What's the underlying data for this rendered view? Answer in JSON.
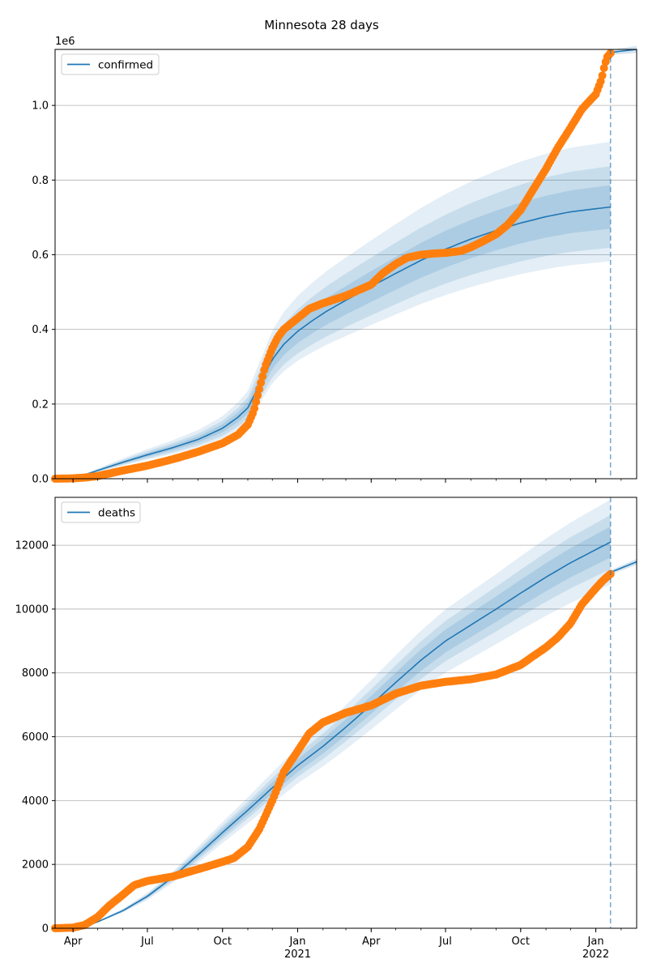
{
  "title": "Minnesota 28 days",
  "colors": {
    "model": "#1f77b4",
    "observed": "#ff7f0e",
    "grid": "#b0b0b0"
  },
  "x_ticks": [
    {
      "date": "2020-04-01",
      "label": "Apr",
      "year": ""
    },
    {
      "date": "2020-07-01",
      "label": "Jul",
      "year": ""
    },
    {
      "date": "2020-10-01",
      "label": "Oct",
      "year": ""
    },
    {
      "date": "2021-01-01",
      "label": "Jan",
      "year": "2021"
    },
    {
      "date": "2021-04-01",
      "label": "Apr",
      "year": ""
    },
    {
      "date": "2021-07-01",
      "label": "Jul",
      "year": ""
    },
    {
      "date": "2021-10-01",
      "label": "Oct",
      "year": ""
    },
    {
      "date": "2022-01-01",
      "label": "Jan",
      "year": "2022"
    }
  ],
  "chart_data": [
    {
      "type": "line",
      "legend": "confirmed",
      "legend_position": "upper-left",
      "offset_label": "1e6",
      "xlim": [
        "2020-03-10",
        "2022-02-20"
      ],
      "ylim": [
        0,
        1150000
      ],
      "y_ticks": [
        0,
        200000,
        400000,
        600000,
        800000,
        1000000
      ],
      "y_tick_labels": [
        "0.0",
        "0.2",
        "0.4",
        "0.6",
        "0.8",
        "1.0"
      ],
      "grid": "horizontal",
      "forecast_start": "2022-01-19",
      "model": {
        "x": [
          "2020-03-10",
          "2020-04-01",
          "2020-05-01",
          "2020-06-01",
          "2020-07-01",
          "2020-08-01",
          "2020-09-01",
          "2020-10-01",
          "2020-10-20",
          "2020-11-01",
          "2020-11-15",
          "2020-12-01",
          "2020-12-15",
          "2021-01-01",
          "2021-01-20",
          "2021-02-05",
          "2021-03-01",
          "2021-04-01",
          "2021-05-01",
          "2021-06-01",
          "2021-07-01",
          "2021-08-01",
          "2021-09-01",
          "2021-10-01",
          "2021-11-01",
          "2021-12-01",
          "2022-01-19"
        ],
        "y": [
          0,
          0,
          22000,
          44000,
          64000,
          83000,
          105000,
          135000,
          165000,
          190000,
          250000,
          320000,
          360000,
          395000,
          425000,
          448000,
          478000,
          515000,
          550000,
          585000,
          615000,
          642000,
          665000,
          685000,
          702000,
          715000,
          728000
        ],
        "band_inner": [
          0.92,
          1.08
        ],
        "band_mid": [
          0.85,
          1.15
        ],
        "band_outer": [
          0.8,
          1.24
        ]
      },
      "projection": {
        "x": [
          "2022-01-19",
          "2022-02-20"
        ],
        "y": [
          1142000,
          1150000
        ]
      },
      "observed": {
        "x": [
          "2020-03-10",
          "2020-04-01",
          "2020-04-15",
          "2020-05-01",
          "2020-06-01",
          "2020-07-01",
          "2020-08-01",
          "2020-09-01",
          "2020-10-01",
          "2020-10-20",
          "2020-11-01",
          "2020-11-08",
          "2020-11-15",
          "2020-11-22",
          "2020-12-01",
          "2020-12-08",
          "2020-12-15",
          "2021-01-01",
          "2021-01-15",
          "2021-02-01",
          "2021-03-01",
          "2021-04-01",
          "2021-04-15",
          "2021-05-01",
          "2021-05-15",
          "2021-06-01",
          "2021-06-15",
          "2021-07-01",
          "2021-07-20",
          "2021-08-01",
          "2021-08-15",
          "2021-09-01",
          "2021-09-15",
          "2021-10-01",
          "2021-10-15",
          "2021-11-01",
          "2021-11-15",
          "2021-12-01",
          "2021-12-15",
          "2022-01-01",
          "2022-01-08",
          "2022-01-12",
          "2022-01-15",
          "2022-01-19"
        ],
        "y": [
          0,
          1000,
          3000,
          7000,
          22000,
          35000,
          52000,
          72000,
          95000,
          118000,
          145000,
          180000,
          240000,
          300000,
          350000,
          380000,
          400000,
          430000,
          455000,
          470000,
          490000,
          520000,
          550000,
          575000,
          592000,
          600000,
          603000,
          605000,
          610000,
          620000,
          635000,
          655000,
          680000,
          720000,
          770000,
          830000,
          885000,
          940000,
          990000,
          1030000,
          1070000,
          1110000,
          1130000,
          1140000
        ]
      }
    },
    {
      "type": "line",
      "legend": "deaths",
      "legend_position": "upper-left",
      "xlim": [
        "2020-03-10",
        "2022-02-20"
      ],
      "ylim": [
        0,
        13500
      ],
      "y_ticks": [
        0,
        2000,
        4000,
        6000,
        8000,
        10000,
        12000
      ],
      "y_tick_labels": [
        "0",
        "2000",
        "4000",
        "6000",
        "8000",
        "10000",
        "12000"
      ],
      "grid": "horizontal",
      "forecast_start": "2022-01-19",
      "model": {
        "x": [
          "2020-03-10",
          "2020-04-01",
          "2020-04-15",
          "2020-05-01",
          "2020-06-01",
          "2020-07-01",
          "2020-08-01",
          "2020-09-01",
          "2020-10-01",
          "2020-11-01",
          "2020-12-01",
          "2021-01-01",
          "2021-02-01",
          "2021-03-01",
          "2021-04-01",
          "2021-05-01",
          "2021-06-01",
          "2021-07-01",
          "2021-08-01",
          "2021-09-01",
          "2021-10-01",
          "2021-11-01",
          "2021-12-01",
          "2022-01-19"
        ],
        "y": [
          0,
          0,
          50,
          200,
          550,
          1000,
          1600,
          2300,
          3000,
          3700,
          4400,
          5100,
          5700,
          6300,
          7000,
          7700,
          8400,
          9000,
          9500,
          10000,
          10500,
          11000,
          11450,
          12100
        ],
        "band_inner": [
          0.96,
          1.04
        ],
        "band_mid": [
          0.93,
          1.07
        ],
        "band_outer": [
          0.89,
          1.11
        ]
      },
      "projection": {
        "x": [
          "2022-01-19",
          "2022-02-20"
        ],
        "y": [
          11150,
          11480
        ]
      },
      "observed": {
        "x": [
          "2020-03-10",
          "2020-04-01",
          "2020-04-15",
          "2020-05-01",
          "2020-05-15",
          "2020-06-01",
          "2020-06-15",
          "2020-07-01",
          "2020-08-01",
          "2020-09-01",
          "2020-10-01",
          "2020-10-15",
          "2020-11-01",
          "2020-11-15",
          "2020-12-01",
          "2020-12-15",
          "2021-01-01",
          "2021-01-15",
          "2021-02-01",
          "2021-03-01",
          "2021-04-01",
          "2021-05-01",
          "2021-06-01",
          "2021-07-01",
          "2021-08-01",
          "2021-09-01",
          "2021-10-01",
          "2021-10-15",
          "2021-11-01",
          "2021-11-15",
          "2021-12-01",
          "2021-12-15",
          "2022-01-01",
          "2022-01-10",
          "2022-01-19"
        ],
        "y": [
          0,
          20,
          100,
          350,
          700,
          1050,
          1350,
          1480,
          1620,
          1850,
          2080,
          2200,
          2550,
          3100,
          4000,
          4900,
          5550,
          6100,
          6450,
          6750,
          6980,
          7350,
          7600,
          7720,
          7800,
          7950,
          8250,
          8500,
          8800,
          9100,
          9550,
          10150,
          10650,
          10900,
          11100
        ]
      }
    }
  ]
}
